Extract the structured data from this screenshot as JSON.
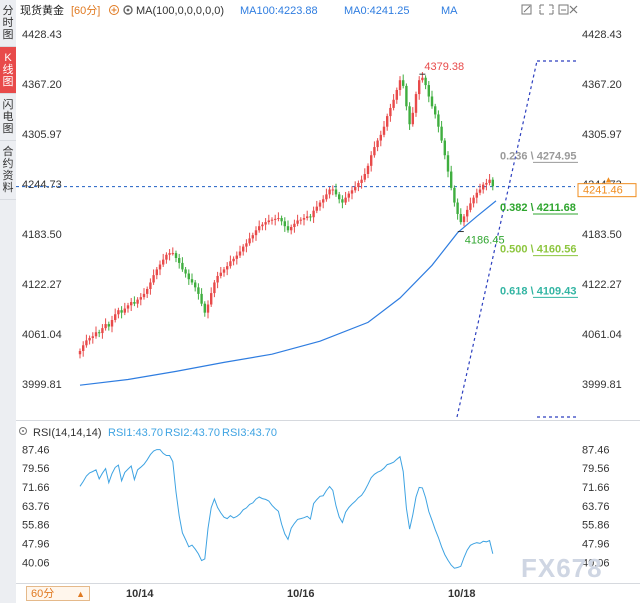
{
  "sidebar": {
    "tabs": [
      {
        "label": "分时图",
        "active": false
      },
      {
        "label": "K线图",
        "active": true
      },
      {
        "label": "闪电图",
        "active": false
      },
      {
        "label": "合约资料",
        "active": false
      }
    ]
  },
  "header": {
    "symbol": "现货黄金",
    "period": "[60分]",
    "ma_label": "MA(100,0,0,0,0,0)",
    "ma100": "MA100:4223.88",
    "ma0": "MA0:4241.25",
    "ma": "MA"
  },
  "rsi_header": {
    "label": "RSI(14,14,14)",
    "rsi1": "RSI1:43.70",
    "rsi2": "RSI2:43.70",
    "rsi3": "RSI3:43.70"
  },
  "bottom": {
    "period_select": "60分",
    "dates": [
      "10/14",
      "10/16",
      "10/18"
    ]
  },
  "watermark": "FX678",
  "colors": {
    "up": "#e84a4a",
    "down": "#3fae3f",
    "ma100": "#2f7de0",
    "rsi": "#3ea3e2",
    "fib_line": "#2c3fbf",
    "fib_0236": "#9a9a9a",
    "fib_0382": "#2ea52e",
    "fib_0500": "#8dc63f",
    "fib_0618": "#33b5a3",
    "orange": "#f08c1e",
    "dashed_price": "#1f5fc2"
  },
  "chart_data": [
    {
      "type": "candlestick",
      "title": "现货黄金 [60分]",
      "y_ticks": [
        4428.43,
        4367.2,
        4305.97,
        4244.73,
        4183.5,
        4122.27,
        4061.04,
        3999.81
      ],
      "ylim": [
        3975,
        4436
      ],
      "x_ticks": [
        "10/14",
        "10/16",
        "10/18"
      ],
      "bar_count": 130,
      "current_price": "4241.46",
      "high_label": "4379.38",
      "low_label": "4186.45",
      "fib_levels": [
        {
          "ratio": "0.236",
          "value": "4274.95"
        },
        {
          "ratio": "0.382",
          "value": "4211.68"
        },
        {
          "ratio": "0.500",
          "value": "4160.56"
        },
        {
          "ratio": "0.618",
          "value": "4109.43"
        }
      ],
      "ma100_points": [
        [
          0,
          3998
        ],
        [
          15,
          4005
        ],
        [
          30,
          4015
        ],
        [
          45,
          4026
        ],
        [
          60,
          4036
        ],
        [
          75,
          4052
        ],
        [
          90,
          4075
        ],
        [
          100,
          4105
        ],
        [
          110,
          4145
        ],
        [
          118,
          4185
        ],
        [
          124,
          4205
        ],
        [
          130,
          4224
        ]
      ],
      "closes": [
        4040,
        4047,
        4053,
        4056,
        4058,
        4063,
        4062,
        4068,
        4073,
        4070,
        4078,
        4085,
        4090,
        4087,
        4092,
        4096,
        4100,
        4098,
        4103,
        4106,
        4110,
        4116,
        4124,
        4133,
        4140,
        4146,
        4152,
        4158,
        4160,
        4160,
        4154,
        4148,
        4140,
        4135,
        4128,
        4124,
        4118,
        4110,
        4098,
        4087,
        4097,
        4111,
        4124,
        4132,
        4136,
        4140,
        4144,
        4150,
        4153,
        4157,
        4162,
        4168,
        4172,
        4178,
        4182,
        4188,
        4193,
        4195,
        4198,
        4200,
        4201,
        4202,
        4203,
        4199,
        4193,
        4188,
        4192,
        4196,
        4200,
        4201,
        4203,
        4205,
        4204,
        4212,
        4217,
        4222,
        4226,
        4232,
        4238,
        4238,
        4232,
        4226,
        4222,
        4228,
        4233,
        4237,
        4241,
        4246,
        4250,
        4257,
        4267,
        4280,
        4290,
        4298,
        4305,
        4315,
        4328,
        4338,
        4348,
        4360,
        4372,
        4365,
        4340,
        4318,
        4332,
        4355,
        4372,
        4375,
        4366,
        4352,
        4340,
        4330,
        4315,
        4298,
        4280,
        4260,
        4240,
        4222,
        4208,
        4198,
        4205,
        4213,
        4221,
        4228,
        4234,
        4238,
        4244,
        4246,
        4250,
        4242
      ]
    },
    {
      "type": "line",
      "title": "RSI(14,14,14)",
      "y_ticks": [
        87.46,
        79.56,
        71.66,
        63.76,
        55.86,
        47.96,
        40.06
      ],
      "ylim": [
        36,
        91
      ],
      "series": [
        {
          "name": "RSI1",
          "values": [
            72.0,
            74.0,
            76.3,
            77.6,
            78.2,
            78.9,
            75.1,
            77.5,
            79.4,
            73.5,
            77.3,
            79.9,
            80.9,
            74.3,
            77.8,
            79.2,
            80.5,
            74.8,
            78.9,
            80.0,
            81.2,
            83.1,
            85.3,
            86.8,
            87.4,
            87.4,
            85.8,
            84.9,
            84.9,
            82.3,
            69.6,
            59.6,
            52.4,
            49.6,
            46.6,
            47.3,
            45.6,
            43.6,
            40.8,
            41.5,
            54.3,
            63.0,
            66.7,
            63.1,
            60.8,
            59.0,
            58.4,
            59.7,
            58.7,
            59.3,
            60.4,
            62.1,
            62.9,
            64.4,
            65.0,
            66.6,
            67.5,
            66.8,
            66.5,
            65.8,
            64.0,
            62.6,
            61.5,
            56.1,
            52.0,
            49.7,
            54.4,
            56.4,
            58.1,
            58.4,
            58.8,
            59.4,
            58.2,
            64.7,
            66.4,
            67.8,
            68.0,
            70.2,
            71.9,
            70.3,
            63.8,
            59.1,
            56.8,
            61.1,
            63.1,
            64.5,
            65.7,
            67.2,
            68.2,
            70.2,
            72.8,
            75.6,
            77.0,
            77.9,
            78.5,
            79.6,
            81.1,
            81.5,
            82.1,
            83.3,
            84.4,
            78.2,
            62.8,
            54.0,
            60.0,
            67.5,
            71.5,
            71.3,
            67.2,
            61.4,
            57.7,
            53.8,
            50.5,
            46.6,
            43.3,
            40.9,
            38.9,
            37.6,
            37.9,
            38.4,
            42.1,
            45.2,
            47.2,
            47.9,
            48.3,
            48.0,
            48.9,
            48.7,
            49.2,
            43.7
          ]
        }
      ]
    }
  ]
}
